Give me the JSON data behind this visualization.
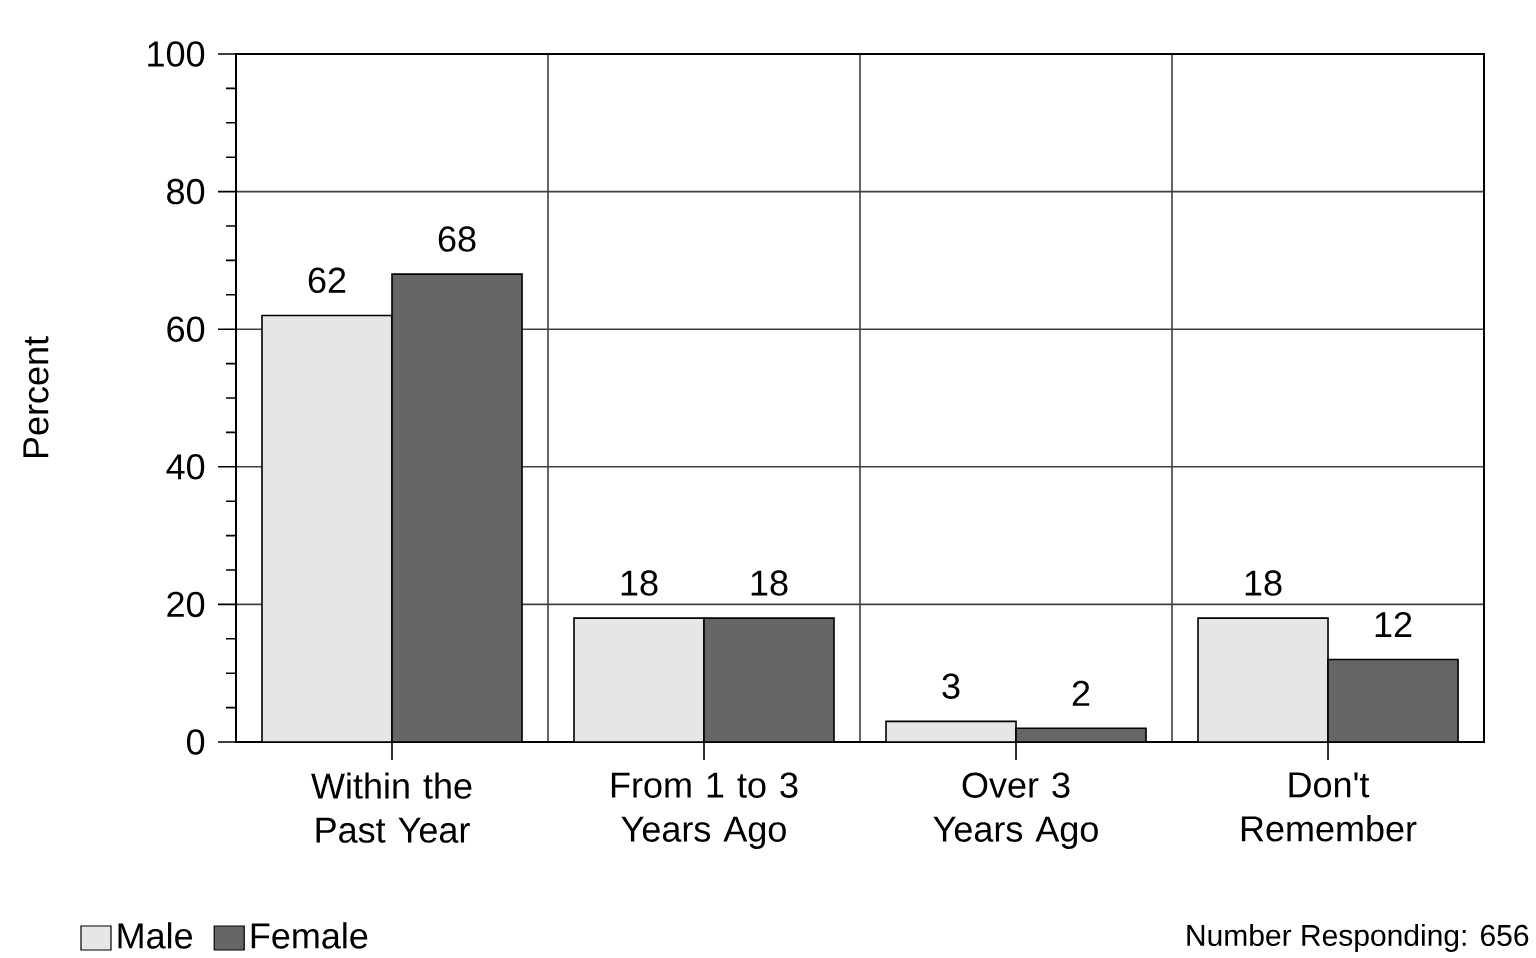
{
  "chart_data": {
    "type": "bar",
    "categories": [
      "Within the Past Year",
      "From 1 to 3 Years Ago",
      "Over 3 Years Ago",
      "Don't Remember"
    ],
    "series": [
      {
        "name": "Male",
        "color": "#e6e6e6",
        "values": [
          62,
          18,
          3,
          18
        ]
      },
      {
        "name": "Female",
        "color": "#666666",
        "values": [
          68,
          18,
          2,
          12
        ]
      }
    ],
    "ylabel": "Percent",
    "ylim": [
      0,
      100
    ],
    "yticks": [
      0,
      20,
      40,
      60,
      80,
      100
    ],
    "grid": true,
    "legend": "bottom left",
    "data_labels": true,
    "annotations": [
      "Number Responding: 656"
    ]
  }
}
